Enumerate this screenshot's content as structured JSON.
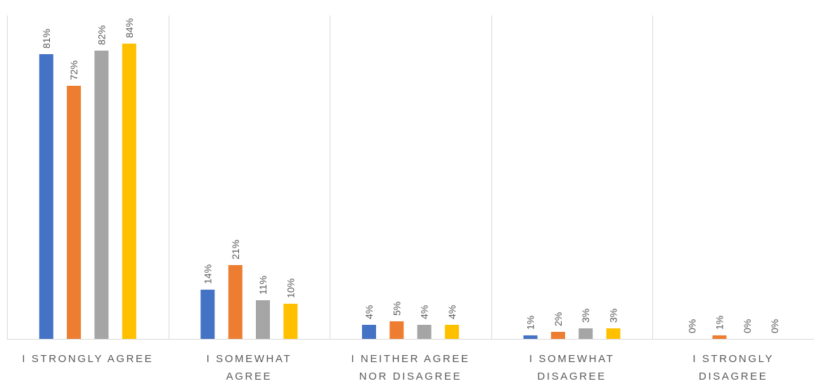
{
  "chart_data": {
    "type": "bar",
    "categories": [
      [
        "I STRONGLY AGREE"
      ],
      [
        "I SOMEWHAT",
        "AGREE"
      ],
      [
        "I NEITHER AGREE",
        "NOR DISAGREE"
      ],
      [
        "I SOMEWHAT",
        "DISAGREE"
      ],
      [
        "I STRONGLY",
        "DISAGREE"
      ]
    ],
    "series": [
      {
        "color": "#4472C4",
        "values": [
          81,
          14,
          4,
          1,
          0
        ],
        "labels": [
          "81%",
          "14%",
          "4%",
          "1%",
          "0%"
        ]
      },
      {
        "color": "#ED7D31",
        "values": [
          72,
          21,
          5,
          2,
          1
        ],
        "labels": [
          "72%",
          "21%",
          "5%",
          "2%",
          "1%"
        ]
      },
      {
        "color": "#A5A5A5",
        "values": [
          82,
          11,
          4,
          3,
          0
        ],
        "labels": [
          "82%",
          "11%",
          "4%",
          "3%",
          "0%"
        ]
      },
      {
        "color": "#FFC000",
        "values": [
          84,
          10,
          4,
          3,
          0
        ],
        "labels": [
          "84%",
          "10%",
          "4%",
          "3%",
          "0%"
        ]
      }
    ],
    "ylim": [
      0,
      100
    ],
    "grid": false,
    "category_separators": true,
    "legend": "none",
    "title": "",
    "xlabel": "",
    "ylabel": ""
  }
}
